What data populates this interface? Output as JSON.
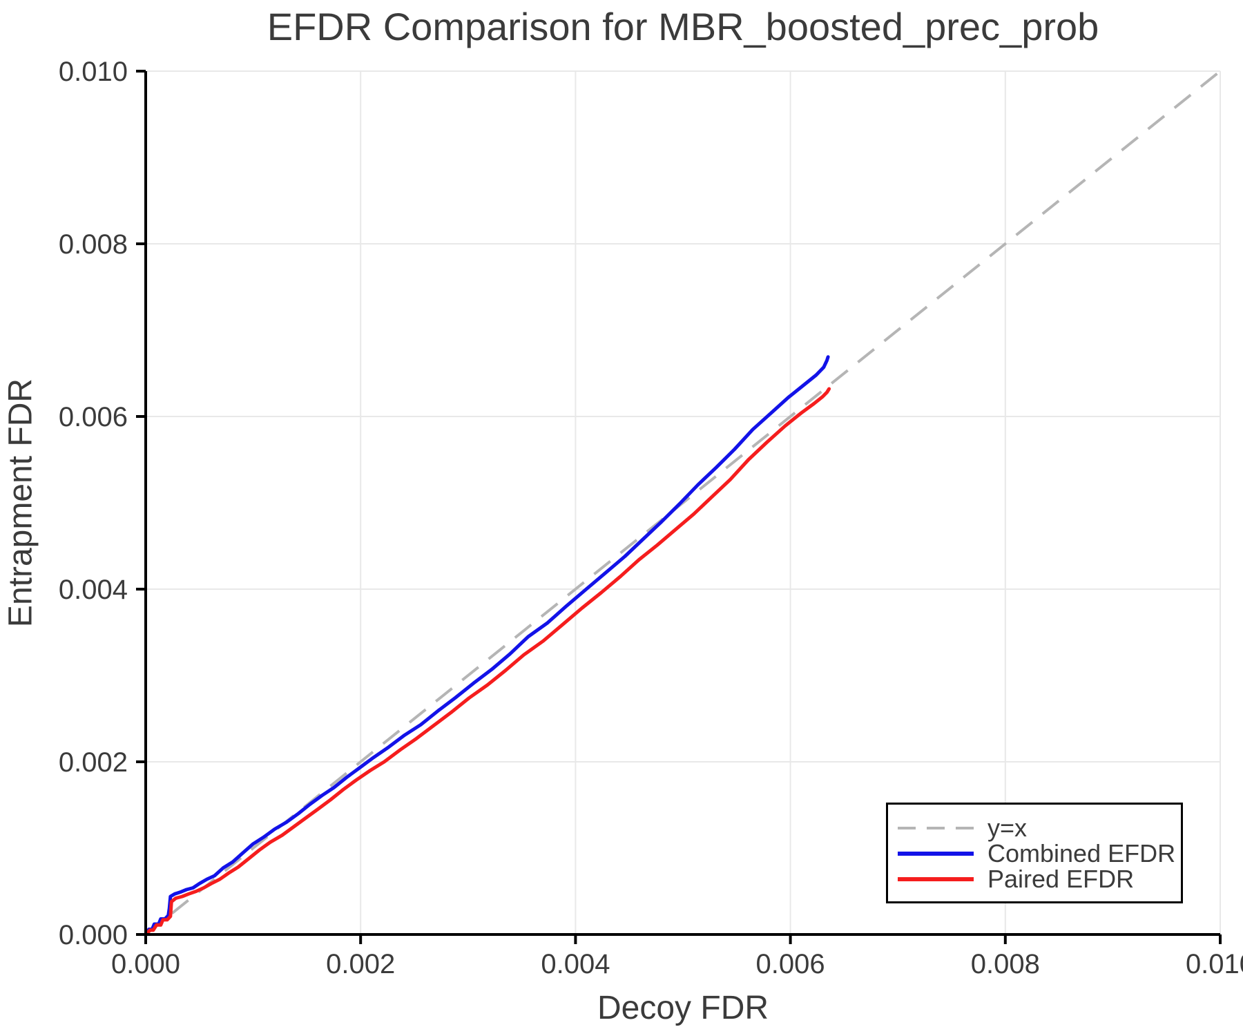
{
  "chart_data": {
    "type": "line",
    "title": "EFDR Comparison for MBR_boosted_prec_prob",
    "xlabel": "Decoy FDR",
    "ylabel": "Entrapment FDR",
    "xlim": [
      0.0,
      0.01
    ],
    "ylim": [
      0.0,
      0.01
    ],
    "xticks": [
      0.0,
      0.002,
      0.004,
      0.006,
      0.008,
      0.01
    ],
    "yticks": [
      0.0,
      0.002,
      0.004,
      0.006,
      0.008,
      0.01
    ],
    "tick_decimals": 3,
    "grid": true,
    "legend_position": "lower right",
    "reference_line": {
      "label": "y=x",
      "from": [
        0.0,
        0.0
      ],
      "to": [
        0.01,
        0.01
      ],
      "color": "#b5b5b5",
      "dashed": true
    },
    "series": [
      {
        "name": "Combined EFDR",
        "color": "#1212e8",
        "points": [
          [
            0.0,
            0.0
          ],
          [
            3e-05,
            6e-05
          ],
          [
            6e-05,
            6e-05
          ],
          [
            8e-05,
            0.00012
          ],
          [
            0.00012,
            0.00012
          ],
          [
            0.00014,
            0.00018
          ],
          [
            0.00018,
            0.00018
          ],
          [
            0.00021,
            0.00022
          ],
          [
            0.00022,
            0.0003
          ],
          [
            0.00023,
            0.00044
          ],
          [
            0.00027,
            0.00047
          ],
          [
            0.00032,
            0.00049
          ],
          [
            0.00038,
            0.00052
          ],
          [
            0.00044,
            0.00054
          ],
          [
            0.0005,
            0.00059
          ],
          [
            0.00057,
            0.00064
          ],
          [
            0.00064,
            0.00068
          ],
          [
            0.00072,
            0.00077
          ],
          [
            0.00081,
            0.00084
          ],
          [
            0.0009,
            0.00094
          ],
          [
            0.001,
            0.00105
          ],
          [
            0.0011,
            0.00113
          ],
          [
            0.0012,
            0.00122
          ],
          [
            0.00131,
            0.0013
          ],
          [
            0.00142,
            0.0014
          ],
          [
            0.00153,
            0.00151
          ],
          [
            0.00164,
            0.00161
          ],
          [
            0.00175,
            0.0017
          ],
          [
            0.00187,
            0.00182
          ],
          [
            0.00199,
            0.00193
          ],
          [
            0.00212,
            0.00205
          ],
          [
            0.00226,
            0.00217
          ],
          [
            0.00241,
            0.00231
          ],
          [
            0.00256,
            0.00243
          ],
          [
            0.00272,
            0.00259
          ],
          [
            0.00288,
            0.00274
          ],
          [
            0.00305,
            0.00291
          ],
          [
            0.00322,
            0.00307
          ],
          [
            0.00339,
            0.00325
          ],
          [
            0.00356,
            0.00345
          ],
          [
            0.00374,
            0.00361
          ],
          [
            0.00392,
            0.00381
          ],
          [
            0.0041,
            0.004
          ],
          [
            0.00428,
            0.00419
          ],
          [
            0.00446,
            0.00438
          ],
          [
            0.00463,
            0.00458
          ],
          [
            0.0048,
            0.00478
          ],
          [
            0.00497,
            0.00499
          ],
          [
            0.00514,
            0.00521
          ],
          [
            0.00531,
            0.00541
          ],
          [
            0.00548,
            0.00562
          ],
          [
            0.00565,
            0.00585
          ],
          [
            0.00582,
            0.00604
          ],
          [
            0.00598,
            0.00622
          ],
          [
            0.00612,
            0.00636
          ],
          [
            0.00624,
            0.00648
          ],
          [
            0.00631,
            0.00657
          ],
          [
            0.00634,
            0.00665
          ],
          [
            0.00635,
            0.00669
          ]
        ]
      },
      {
        "name": "Paired EFDR",
        "color": "#f51d1d",
        "points": [
          [
            0.0,
            0.0
          ],
          [
            4e-05,
            5e-05
          ],
          [
            7e-05,
            5e-05
          ],
          [
            0.0001,
            0.00011
          ],
          [
            0.00014,
            0.00011
          ],
          [
            0.00016,
            0.00017
          ],
          [
            0.0002,
            0.00017
          ],
          [
            0.00023,
            0.00021
          ],
          [
            0.00024,
            0.00038
          ],
          [
            0.00028,
            0.00042
          ],
          [
            0.00034,
            0.00044
          ],
          [
            0.0004,
            0.00047
          ],
          [
            0.00047,
            0.0005
          ],
          [
            0.00054,
            0.00054
          ],
          [
            0.00061,
            0.00059
          ],
          [
            0.00069,
            0.00064
          ],
          [
            0.00077,
            0.00071
          ],
          [
            0.00086,
            0.00078
          ],
          [
            0.00096,
            0.00088
          ],
          [
            0.00106,
            0.00098
          ],
          [
            0.00116,
            0.00107
          ],
          [
            0.00127,
            0.00115
          ],
          [
            0.00138,
            0.00125
          ],
          [
            0.00149,
            0.00135
          ],
          [
            0.0016,
            0.00145
          ],
          [
            0.00172,
            0.00156
          ],
          [
            0.00184,
            0.00168
          ],
          [
            0.00196,
            0.00179
          ],
          [
            0.00209,
            0.0019
          ],
          [
            0.00222,
            0.002
          ],
          [
            0.00237,
            0.00214
          ],
          [
            0.00252,
            0.00227
          ],
          [
            0.00268,
            0.00242
          ],
          [
            0.00284,
            0.00257
          ],
          [
            0.00301,
            0.00274
          ],
          [
            0.00318,
            0.00289
          ],
          [
            0.00335,
            0.00306
          ],
          [
            0.00352,
            0.00324
          ],
          [
            0.0037,
            0.0034
          ],
          [
            0.00388,
            0.00359
          ],
          [
            0.00406,
            0.00378
          ],
          [
            0.00424,
            0.00396
          ],
          [
            0.00442,
            0.00415
          ],
          [
            0.00459,
            0.00434
          ],
          [
            0.00476,
            0.00451
          ],
          [
            0.00493,
            0.00469
          ],
          [
            0.0051,
            0.00487
          ],
          [
            0.00527,
            0.00507
          ],
          [
            0.00544,
            0.00527
          ],
          [
            0.00561,
            0.0055
          ],
          [
            0.00578,
            0.0057
          ],
          [
            0.00595,
            0.00589
          ],
          [
            0.0061,
            0.00604
          ],
          [
            0.00622,
            0.00615
          ],
          [
            0.0063,
            0.00623
          ],
          [
            0.00634,
            0.00628
          ],
          [
            0.00636,
            0.00632
          ]
        ]
      }
    ],
    "style": {
      "axis_color": "#000000",
      "grid_color": "#e8e8e8",
      "text_color": "#3b3b3b",
      "background": "#ffffff",
      "series_line_width": 5,
      "reference_line_width": 4
    }
  }
}
